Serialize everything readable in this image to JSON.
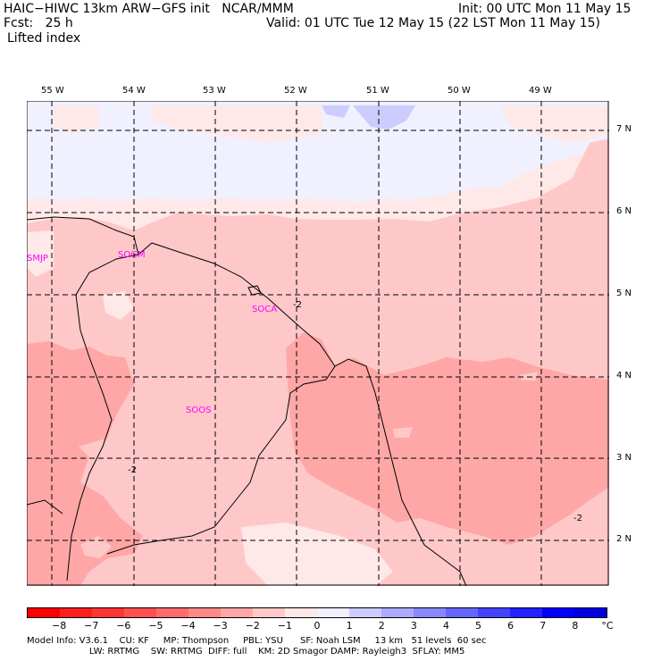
{
  "header": {
    "model_line": "HAIC−HIWC 13km ARW−GFS init   NCAR/MMM",
    "fcst_line": "Fcst:   25 h",
    "field_name": "Lifted index",
    "init_line": "Init: 00 UTC Mon 11 May 15",
    "valid_line": "Valid: 01 UTC Tue 12 May 15 (22 LST Mon 11 May 15)"
  },
  "map": {
    "lon_labels": [
      "55 W",
      "54 W",
      "53 W",
      "52 W",
      "51 W",
      "50 W",
      "49 W"
    ],
    "lat_labels": [
      "7 N",
      "6 N",
      "5 N",
      "4 N",
      "3 N",
      "2 N"
    ],
    "stations": [
      "SMJP",
      "SOGM",
      "SOCA",
      "SOOS"
    ],
    "contour_labels": [
      "-2",
      "-2",
      "-2"
    ]
  },
  "colorbar": {
    "labels": [
      "−8",
      "−7",
      "−6",
      "−5",
      "−4",
      "−3",
      "−2",
      "−1",
      "0",
      "1",
      "2",
      "3",
      "4",
      "5",
      "6",
      "7",
      "8"
    ],
    "unit": "°C",
    "colors": [
      "#ff0000",
      "#ff1e1e",
      "#ff3535",
      "#ff5050",
      "#ff6c6c",
      "#ff8888",
      "#ffa7a7",
      "#ffc8c8",
      "#ffe8e8",
      "#f0f0ff",
      "#ccccff",
      "#aaaaff",
      "#8888ff",
      "#6666ff",
      "#4444ff",
      "#2222ff",
      "#0000ff",
      "#0000e0"
    ]
  },
  "footer": {
    "line1": "Model Info: V3.6.1    CU: KF     MP: Thompson     PBL: YSU      SF: Noah LSM     13 km   51 levels  60 sec",
    "line2": "                      LW: RRTMG    SW: RRTMG  DIFF: full    KM: 2D Smagor DAMP: Rayleigh3  SFLAY: MM5"
  }
}
